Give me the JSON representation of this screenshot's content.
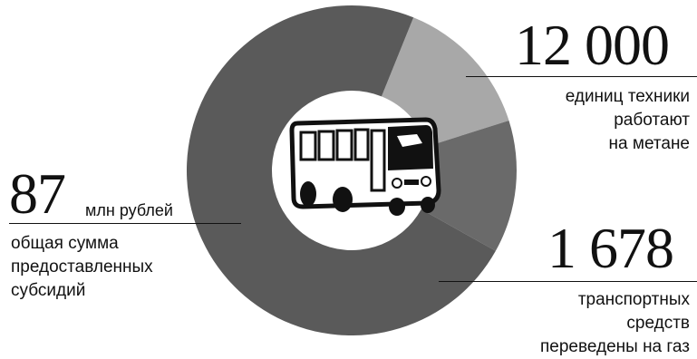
{
  "chart_data": {
    "type": "pie",
    "segments": [
      {
        "label": "единиц техники работают на метане",
        "share": 0.14,
        "color": "#a8a8a8"
      },
      {
        "label": "транспортных средств переведены на газ",
        "share": 0.13,
        "color": "#6a6a6a"
      },
      {
        "label": "общая сумма предоставленных субсидий",
        "share": 0.73,
        "color": "#5a5a5a"
      }
    ],
    "start_angle_deg": 22
  },
  "stats": {
    "vehicles": {
      "value": "12 000",
      "caption": [
        "единиц техники",
        "работают",
        "на метане"
      ]
    },
    "converted": {
      "value": "1 678",
      "caption": [
        "транспортных",
        "средств",
        "переведены на газ"
      ]
    },
    "subsidy": {
      "value": "87",
      "unit": "млн рублей",
      "caption": [
        "общая сумма",
        "предоставленных",
        "субсидий"
      ]
    }
  },
  "center_icon": "bus-icon"
}
